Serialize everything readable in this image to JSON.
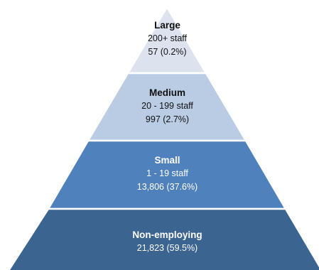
{
  "tiers": [
    {
      "name": "Large",
      "staff": "200+ staff",
      "count": "57 (0.2%)",
      "color": "#dce3ef"
    },
    {
      "name": "Medium",
      "staff": "20 - 199 staff",
      "count": "997 (2.7%)",
      "color": "#b9cce4"
    },
    {
      "name": "Small",
      "staff": "1 - 19 staff",
      "count": "13,806 (37.6%)",
      "color": "#4f81bd"
    },
    {
      "name": "Non-employing",
      "count": "21,823 (59.5%)",
      "color": "#3b6491"
    }
  ]
}
